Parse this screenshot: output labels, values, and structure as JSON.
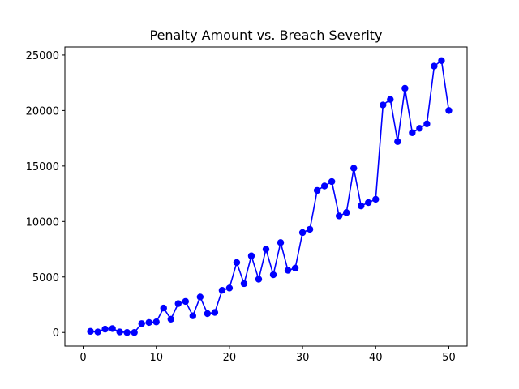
{
  "chart_data": {
    "type": "line",
    "title": "Penalty Amount vs. Breach Severity",
    "xlabel": "",
    "ylabel": "",
    "xlim": [
      -2.5,
      52.5
    ],
    "ylim": [
      -1225,
      25725
    ],
    "xticks": [
      0,
      10,
      20,
      30,
      40,
      50
    ],
    "yticks": [
      0,
      5000,
      10000,
      15000,
      20000,
      25000
    ],
    "grid": false,
    "legend": "none",
    "series": [
      {
        "color": "#0000ff",
        "marker": "circle",
        "x": [
          1,
          2,
          3,
          4,
          5,
          6,
          7,
          8,
          9,
          10,
          11,
          12,
          13,
          14,
          15,
          16,
          17,
          18,
          19,
          20,
          21,
          22,
          23,
          24,
          25,
          26,
          27,
          28,
          29,
          30,
          31,
          32,
          33,
          34,
          35,
          36,
          37,
          38,
          39,
          40,
          41,
          42,
          43,
          44,
          45,
          46,
          47,
          48,
          49,
          50
        ],
        "values": [
          100,
          50,
          300,
          350,
          50,
          0,
          0,
          800,
          900,
          950,
          2200,
          1200,
          2600,
          2800,
          1500,
          3200,
          1700,
          1800,
          3800,
          4000,
          6300,
          4400,
          6900,
          4800,
          7500,
          5200,
          8100,
          5600,
          5800,
          9000,
          9300,
          12800,
          13200,
          13600,
          10500,
          10800,
          14800,
          11400,
          11700,
          12000,
          20500,
          21000,
          17200,
          22000,
          18000,
          18400,
          18800,
          24000,
          24500,
          20000
        ]
      }
    ]
  }
}
